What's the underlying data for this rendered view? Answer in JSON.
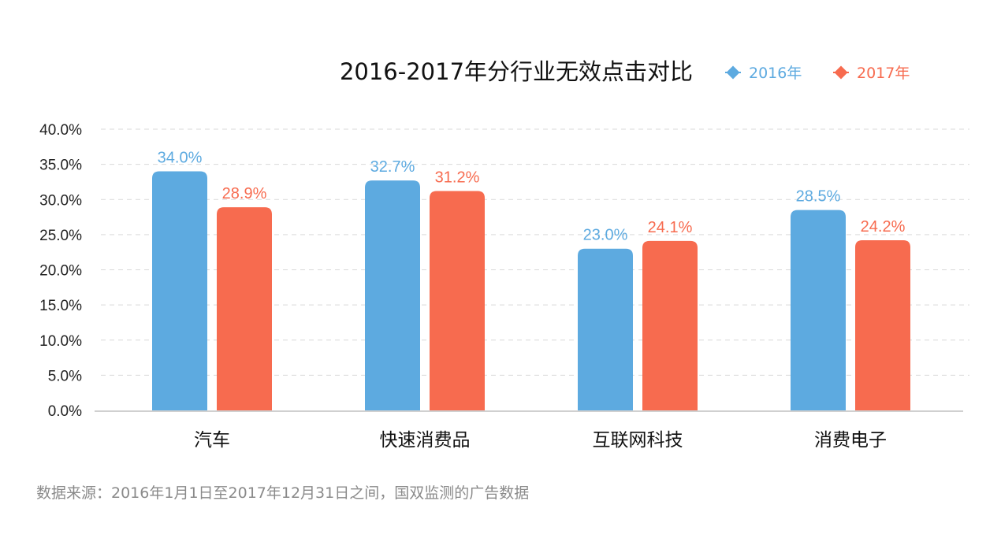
{
  "chart_data": {
    "type": "bar",
    "title": "2016-2017年分行业无效点击对比",
    "categories": [
      "汽车",
      "快速消费品",
      "互联网科技",
      "消费电子"
    ],
    "series": [
      {
        "name": "2016年",
        "values": [
          34.0,
          32.7,
          23.0,
          28.5
        ],
        "labels": [
          "34.0%",
          "32.7%",
          "23.0%",
          "28.5%"
        ],
        "color": "#5DAAE0"
      },
      {
        "name": "2017年",
        "values": [
          28.9,
          31.2,
          24.1,
          24.2
        ],
        "labels": [
          "28.9%",
          "31.2%",
          "24.1%",
          "24.2%"
        ],
        "color": "#F76B4F"
      }
    ],
    "ylim": [
      0,
      40
    ],
    "yticks": [
      "0.0%",
      "5.0%",
      "10.0%",
      "15.0%",
      "20.0%",
      "25.0%",
      "30.0%",
      "35.0%",
      "40.0%"
    ],
    "grid": true,
    "legend": "top-right",
    "xlabel": "",
    "ylabel": ""
  },
  "source_note": "数据来源：2016年1月1日至2017年12月31日之间，国双监测的广告数据"
}
